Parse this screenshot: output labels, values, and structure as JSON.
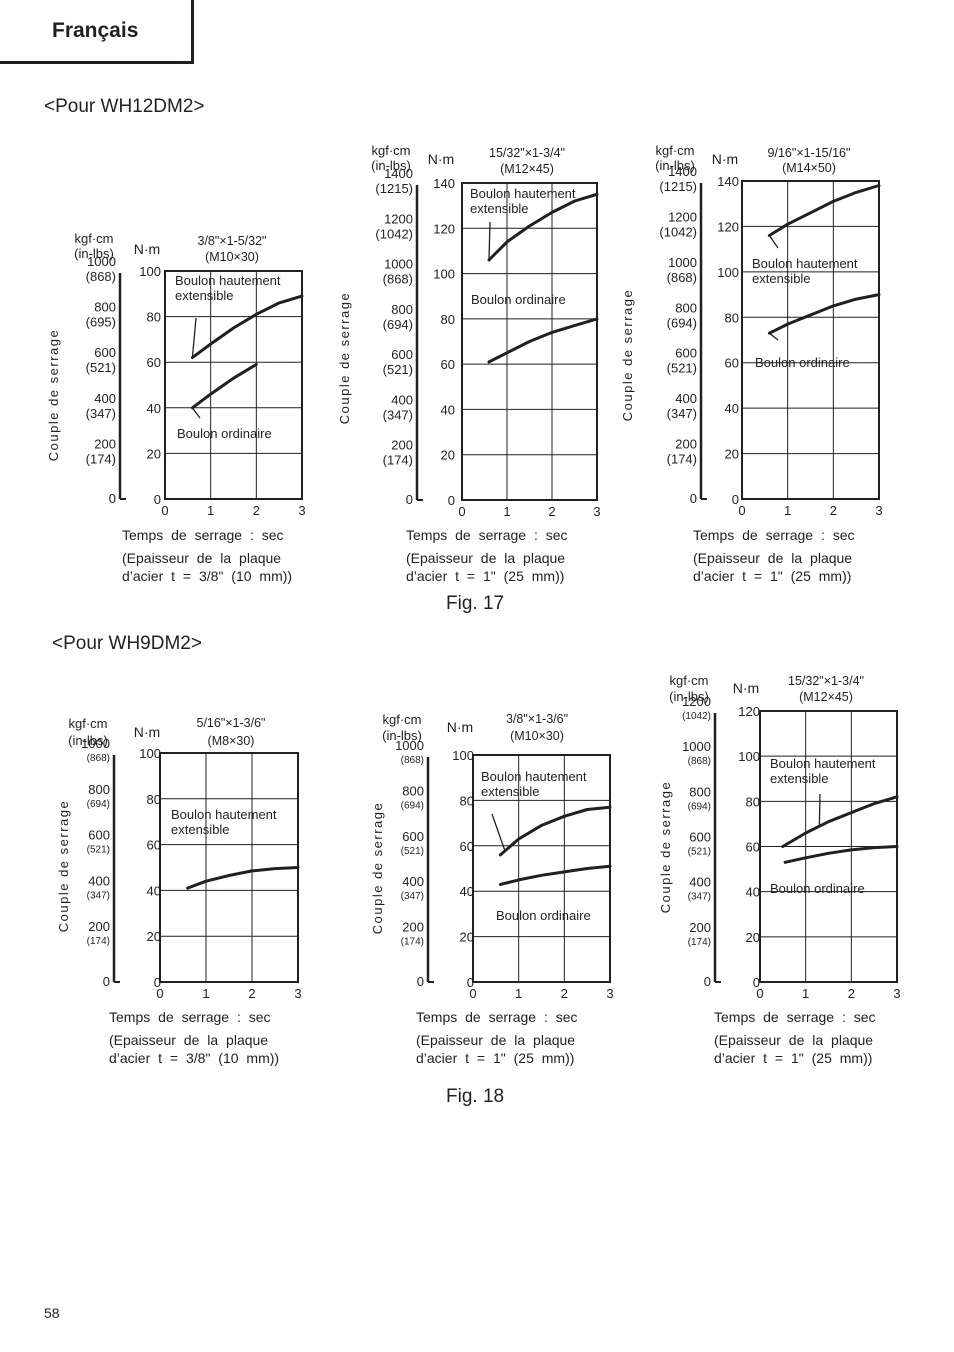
{
  "page": {
    "language_tab": "Français",
    "section_a_heading": "<Pour WH12DM2>",
    "section_b_heading": "<Pour WH9DM2>",
    "fig_a_label": "Fig. 17",
    "fig_b_label": "Fig. 18",
    "page_number": "58"
  },
  "chart_data": [
    {
      "type": "line",
      "title": "3/8\"×1-5/32\"",
      "subtitle": "(M10×30)",
      "ylabel": "Couple de serrage",
      "y_unit_left": "kgf·cm",
      "y_unit_left_alt": "(in-lbs)",
      "y_unit_right": "N·m",
      "left_ticks": [
        {
          "main": "0",
          "sub": ""
        },
        {
          "main": "200",
          "sub": "(174)"
        },
        {
          "main": "400",
          "sub": "(347)"
        },
        {
          "main": "600",
          "sub": "(521)"
        },
        {
          "main": "800",
          "sub": "(695)"
        },
        {
          "main": "1000",
          "sub": "(868)"
        }
      ],
      "right_ticks": [
        "0",
        "20",
        "40",
        "60",
        "80",
        "100"
      ],
      "x_ticks": [
        "0",
        "1",
        "2",
        "3"
      ],
      "xlim": [
        0,
        3
      ],
      "ylim": [
        0,
        100
      ],
      "xlabel": "Temps de serrage : sec",
      "note_line1": "(Epaisseur de la plaque",
      "note_line2": "d’acier t = 3/8\" (10 mm))",
      "series": [
        {
          "name": "Boulon hautement extensible",
          "x": [
            0.6,
            1.0,
            1.5,
            2.0,
            2.5,
            3.0
          ],
          "y": [
            62,
            68,
            75,
            81,
            86,
            89
          ]
        },
        {
          "name": "Boulon ordinaire",
          "x": [
            0.6,
            1.0,
            1.5,
            2.0
          ],
          "y": [
            40,
            46,
            53,
            59
          ]
        }
      ]
    },
    {
      "type": "line",
      "title": "15/32\"×1-3/4\"",
      "subtitle": "(M12×45)",
      "ylabel": "Couple de serrage",
      "y_unit_left": "kgf·cm",
      "y_unit_left_alt": "(in-lbs)",
      "y_unit_right": "N·m",
      "left_ticks": [
        {
          "main": "0",
          "sub": ""
        },
        {
          "main": "200",
          "sub": "(174)"
        },
        {
          "main": "400",
          "sub": "(347)"
        },
        {
          "main": "600",
          "sub": "(521)"
        },
        {
          "main": "800",
          "sub": "(694)"
        },
        {
          "main": "1000",
          "sub": "(868)"
        },
        {
          "main": "1200",
          "sub": "(1042)"
        },
        {
          "main": "1400",
          "sub": "(1215)"
        }
      ],
      "right_ticks": [
        "0",
        "20",
        "40",
        "60",
        "80",
        "100",
        "120",
        "140"
      ],
      "x_ticks": [
        "0",
        "1",
        "2",
        "3"
      ],
      "xlim": [
        0,
        3
      ],
      "ylim": [
        0,
        140
      ],
      "xlabel": "Temps de serrage : sec",
      "note_line1": "(Epaisseur de la plaque",
      "note_line2": "d’acier t = 1\" (25 mm))",
      "series": [
        {
          "name": "Boulon hautement extensible",
          "x": [
            0.6,
            1.0,
            1.5,
            2.0,
            2.5,
            3.0
          ],
          "y": [
            106,
            114,
            121,
            127,
            132,
            135
          ]
        },
        {
          "name": "Boulon ordinaire",
          "x": [
            0.6,
            1.0,
            1.5,
            2.0,
            2.5,
            3.0
          ],
          "y": [
            61,
            65,
            70,
            74,
            77,
            80
          ]
        }
      ]
    },
    {
      "type": "line",
      "title": "9/16\"×1-15/16\"",
      "subtitle": "(M14×50)",
      "ylabel": "Couple de serrage",
      "y_unit_left": "kgf·cm",
      "y_unit_left_alt": "(in-lbs)",
      "y_unit_right": "N·m",
      "left_ticks": [
        {
          "main": "0",
          "sub": ""
        },
        {
          "main": "200",
          "sub": "(174)"
        },
        {
          "main": "400",
          "sub": "(347)"
        },
        {
          "main": "600",
          "sub": "(521)"
        },
        {
          "main": "800",
          "sub": "(694)"
        },
        {
          "main": "1000",
          "sub": "(868)"
        },
        {
          "main": "1200",
          "sub": "(1042)"
        },
        {
          "main": "1400",
          "sub": "(1215)"
        }
      ],
      "right_ticks": [
        "0",
        "20",
        "40",
        "60",
        "80",
        "100",
        "120",
        "140"
      ],
      "x_ticks": [
        "0",
        "1",
        "2",
        "3"
      ],
      "xlim": [
        0,
        3
      ],
      "ylim": [
        0,
        140
      ],
      "xlabel": "Temps de serrage : sec",
      "note_line1": "(Epaisseur de la plaque",
      "note_line2": "d’acier t = 1\" (25 mm))",
      "series": [
        {
          "name": "Boulon hautement extensible",
          "x": [
            0.6,
            1.0,
            1.5,
            2.0,
            2.5,
            3.0
          ],
          "y": [
            116,
            121,
            126,
            131,
            135,
            138
          ]
        },
        {
          "name": "Boulon ordinaire",
          "x": [
            0.6,
            1.0,
            1.5,
            2.0,
            2.5,
            3.0
          ],
          "y": [
            73,
            77,
            81,
            85,
            88,
            90
          ]
        }
      ]
    },
    {
      "type": "line",
      "title": "5/16\"×1-3/6\"",
      "subtitle": "(M8×30)",
      "ylabel": "Couple de serrage",
      "y_unit_left": "kgf·cm",
      "y_unit_left_alt": "(in-lbs)",
      "y_unit_right": "N·m",
      "left_ticks": [
        {
          "main": "0",
          "sub": ""
        },
        {
          "main": "200",
          "sub": "(174)"
        },
        {
          "main": "400",
          "sub": "(347)"
        },
        {
          "main": "600",
          "sub": "(521)"
        },
        {
          "main": "800",
          "sub": "(694)"
        },
        {
          "main": "1000",
          "sub": "(868)"
        }
      ],
      "right_ticks": [
        "0",
        "20",
        "40",
        "60",
        "80",
        "100"
      ],
      "x_ticks": [
        "0",
        "1",
        "2",
        "3"
      ],
      "xlim": [
        0,
        3
      ],
      "ylim": [
        0,
        100
      ],
      "xlabel": "Temps de serrage : sec",
      "note_line1": "(Epaisseur de la plaque",
      "note_line2": "d’acier t = 3/8\" (10 mm))",
      "series": [
        {
          "name": "Boulon hautement extensible",
          "x": [
            0.6,
            1.0,
            1.5,
            2.0,
            2.5,
            3.0
          ],
          "y": [
            41,
            44,
            46.5,
            48.5,
            49.5,
            50
          ]
        }
      ]
    },
    {
      "type": "line",
      "title": "3/8\"×1-3/6\"",
      "subtitle": "(M10×30)",
      "ylabel": "Couple de serrage",
      "y_unit_left": "kgf·cm",
      "y_unit_left_alt": "(in-lbs)",
      "y_unit_right": "N·m",
      "left_ticks": [
        {
          "main": "0",
          "sub": ""
        },
        {
          "main": "200",
          "sub": "(174)"
        },
        {
          "main": "400",
          "sub": "(347)"
        },
        {
          "main": "600",
          "sub": "(521)"
        },
        {
          "main": "800",
          "sub": "(694)"
        },
        {
          "main": "1000",
          "sub": "(868)"
        }
      ],
      "right_ticks": [
        "0",
        "20",
        "40",
        "60",
        "80",
        "100"
      ],
      "x_ticks": [
        "0",
        "1",
        "2",
        "3"
      ],
      "xlim": [
        0,
        3
      ],
      "ylim": [
        0,
        100
      ],
      "xlabel": "Temps de serrage : sec",
      "note_line1": "(Epaisseur de la plaque",
      "note_line2": "d’acier t = 1\" (25 mm))",
      "series": [
        {
          "name": "Boulon hautement extensible",
          "x": [
            0.6,
            1.0,
            1.5,
            2.0,
            2.5,
            3.0
          ],
          "y": [
            56,
            63,
            69,
            73,
            76,
            77
          ]
        },
        {
          "name": "Boulon ordinaire",
          "x": [
            0.6,
            1.0,
            1.5,
            2.0,
            2.5,
            3.0
          ],
          "y": [
            43,
            45,
            47,
            48.5,
            50,
            51
          ]
        }
      ]
    },
    {
      "type": "line",
      "title": "15/32\"×1-3/4\"",
      "subtitle": "(M12×45)",
      "ylabel": "Couple de serrage",
      "y_unit_left": "kgf·cm",
      "y_unit_left_alt": "(in-lbs)",
      "y_unit_right": "N·m",
      "left_ticks": [
        {
          "main": "0",
          "sub": ""
        },
        {
          "main": "200",
          "sub": "(174)"
        },
        {
          "main": "400",
          "sub": "(347)"
        },
        {
          "main": "600",
          "sub": "(521)"
        },
        {
          "main": "800",
          "sub": "(694)"
        },
        {
          "main": "1000",
          "sub": "(868)"
        },
        {
          "main": "1200",
          "sub": "(1042)"
        }
      ],
      "right_ticks": [
        "0",
        "20",
        "40",
        "60",
        "80",
        "100",
        "120"
      ],
      "x_ticks": [
        "0",
        "1",
        "2",
        "3"
      ],
      "xlim": [
        0,
        3
      ],
      "ylim": [
        0,
        120
      ],
      "xlabel": "Temps de serrage : sec",
      "note_line1": "(Epaisseur de la plaque",
      "note_line2": "d’acier t = 1\" (25 mm))",
      "series": [
        {
          "name": "Boulon hautement extensible",
          "x": [
            0.5,
            1.0,
            1.5,
            2.0,
            2.5,
            3.0
          ],
          "y": [
            60,
            66,
            71,
            75,
            79,
            82
          ]
        },
        {
          "name": "Boulon ordinaire",
          "x": [
            0.55,
            1.0,
            1.5,
            2.0,
            2.5,
            3.0
          ],
          "y": [
            53,
            55,
            57,
            58.5,
            59.5,
            60
          ]
        }
      ]
    }
  ]
}
